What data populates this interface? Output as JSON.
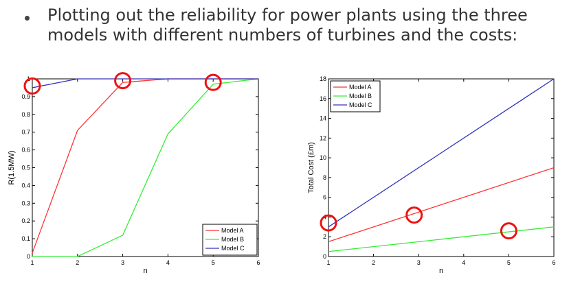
{
  "slide": {
    "bullet": "Plotting out the reliability for power plants using the three models with different numbers of turbines and the costs:"
  },
  "chart_data": [
    {
      "type": "line",
      "xlabel": "n",
      "ylabel": "R(1.5MW)",
      "xlim": [
        1,
        6
      ],
      "ylim": [
        0,
        1
      ],
      "xticks": [
        "1",
        "2",
        "3",
        "4",
        "5",
        "6"
      ],
      "yticks": [
        "0",
        "0.1",
        "0.2",
        "0.3",
        "0.4",
        "0.5",
        "0.6",
        "0.7",
        "0.8",
        "0.9",
        "1"
      ],
      "legend_position": "bottom-right",
      "grid": false,
      "series": [
        {
          "name": "Model A",
          "color": "#ff3333",
          "x": [
            1,
            2,
            3,
            4,
            5,
            6
          ],
          "y": [
            0.02,
            0.71,
            0.98,
            1.0,
            1.0,
            1.0
          ]
        },
        {
          "name": "Model B",
          "color": "#33ee33",
          "x": [
            1,
            2,
            3,
            4,
            5,
            6
          ],
          "y": [
            0.0,
            0.0,
            0.12,
            0.69,
            0.97,
            1.0
          ]
        },
        {
          "name": "Model C",
          "color": "#3333bb",
          "x": [
            1,
            2,
            3,
            4,
            5,
            6
          ],
          "y": [
            0.95,
            1.0,
            1.0,
            1.0,
            1.0,
            1.0
          ]
        }
      ],
      "annotations": [
        {
          "type": "circle",
          "x": 1,
          "y": 0.96
        },
        {
          "type": "circle",
          "x": 3,
          "y": 0.99
        },
        {
          "type": "circle",
          "x": 5,
          "y": 0.98
        }
      ]
    },
    {
      "type": "line",
      "xlabel": "n",
      "ylabel": "Total Cost (£m)",
      "xlim": [
        1,
        6
      ],
      "ylim": [
        0,
        18
      ],
      "xticks": [
        "1",
        "2",
        "3",
        "4",
        "5",
        "6"
      ],
      "yticks": [
        "0",
        "2",
        "4",
        "6",
        "8",
        "10",
        "12",
        "14",
        "16",
        "18"
      ],
      "legend_position": "top-left",
      "grid": false,
      "series": [
        {
          "name": "Model A",
          "color": "#ff3333",
          "x": [
            1,
            6
          ],
          "y": [
            1.5,
            9
          ]
        },
        {
          "name": "Model B",
          "color": "#33ee33",
          "x": [
            1,
            6
          ],
          "y": [
            0.5,
            3
          ]
        },
        {
          "name": "Model C",
          "color": "#3333bb",
          "x": [
            1,
            6
          ],
          "y": [
            3,
            18
          ]
        }
      ],
      "annotations": [
        {
          "type": "circle",
          "x": 1,
          "y": 3.4
        },
        {
          "type": "circle",
          "x": 2.9,
          "y": 4.2
        },
        {
          "type": "circle",
          "x": 5,
          "y": 2.6
        }
      ]
    }
  ],
  "annotation_color": "#ee1111"
}
